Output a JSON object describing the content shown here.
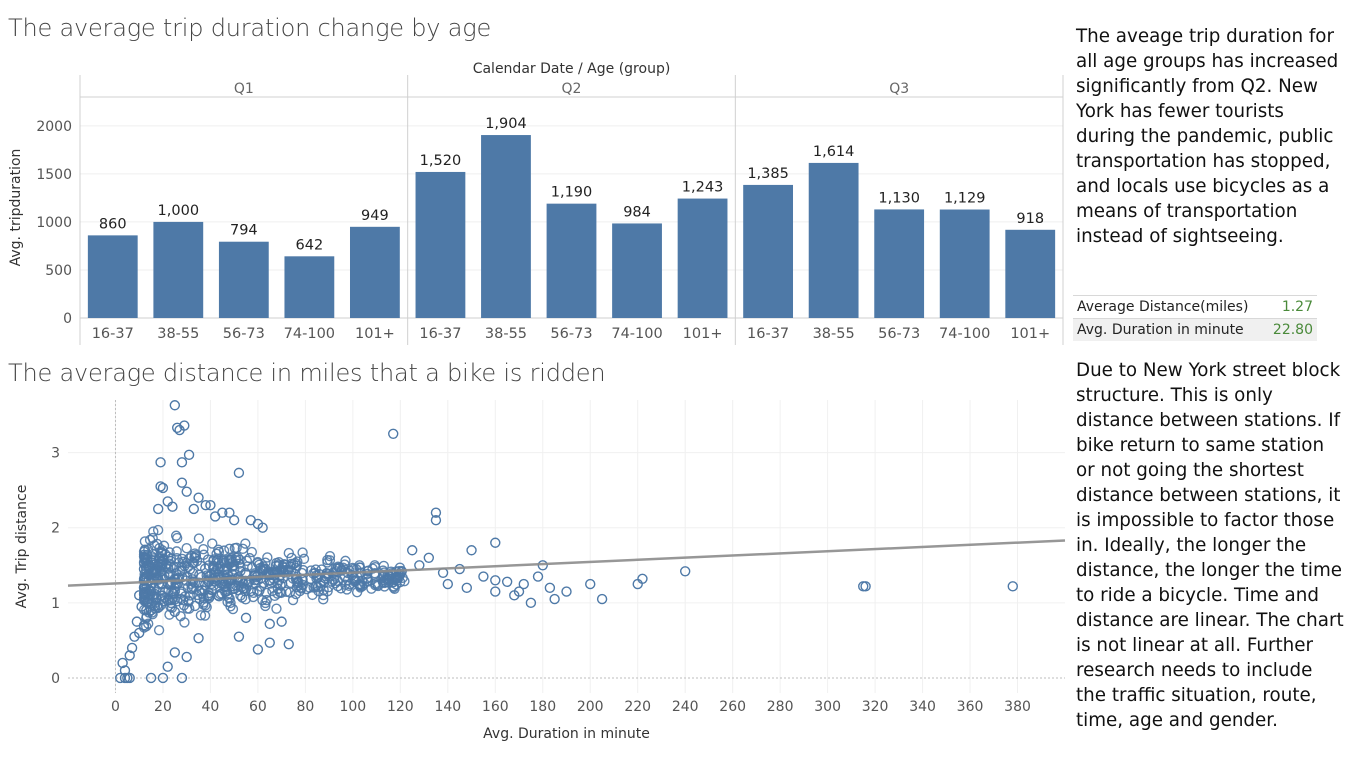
{
  "bar_title": "The average trip duration change by age",
  "scatter_title": "The average distance in miles that a bike is ridden",
  "note_1": "The aveage trip duration for all age groups has increased significantly from Q2.  New York has fewer tourists during the pandemic, public transportation has stopped, and locals use bicycles as a means of transportation instead of sightseeing.",
  "note_2": "Due to New York street block structure. This is only distance between stations. If bike return to  same station or not going the shortest distance between stations, it is impossible to factor those in. Ideally, the longer the distance, the longer the time to ride a bicycle. Time and distance are linear. The chart is not linear at all. Further research needs to include the traffic situation, route, time, age and gender.",
  "summary": {
    "rows": [
      {
        "label": "Average Distance(miles)",
        "value": "1.27"
      },
      {
        "label": "Avg. Duration in minute",
        "value": "22.80"
      }
    ]
  },
  "colors": {
    "mark": "#4e79a7",
    "trend": "#8c8c8c"
  },
  "chart_data": [
    {
      "type": "bar",
      "title": "The average trip duration change by age",
      "header_label": "Calendar Date  /  Age (group)",
      "ylabel": "Avg. tripduration",
      "ylim": [
        0,
        2300
      ],
      "yticks": [
        0,
        500,
        1000,
        1500,
        2000
      ],
      "categories": [
        "16-37",
        "38-55",
        "56-73",
        "74-100",
        "101+"
      ],
      "groups": [
        {
          "name": "Q1",
          "values": [
            860,
            1000,
            794,
            642,
            949
          ],
          "labels": [
            "860",
            "1,000",
            "794",
            "642",
            "949"
          ]
        },
        {
          "name": "Q2",
          "values": [
            1520,
            1904,
            1190,
            984,
            1243
          ],
          "labels": [
            "1,520",
            "1,904",
            "1,190",
            "984",
            "1,243"
          ]
        },
        {
          "name": "Q3",
          "values": [
            1385,
            1614,
            1130,
            1129,
            918
          ],
          "labels": [
            "1,385",
            "1,614",
            "1,130",
            "1,129",
            "918"
          ]
        }
      ],
      "grid": true
    },
    {
      "type": "scatter",
      "title": "The average distance in miles that a bike is ridden",
      "xlabel": "Avg. Duration in minute",
      "ylabel": "Avg. Trip distance",
      "xlim": [
        -20,
        400
      ],
      "ylim": [
        -0.2,
        3.7
      ],
      "xticks": [
        0,
        20,
        40,
        60,
        80,
        100,
        120,
        140,
        160,
        180,
        200,
        220,
        240,
        260,
        280,
        300,
        320,
        340,
        360,
        380
      ],
      "yticks": [
        0,
        1,
        2,
        3
      ],
      "trend_line": {
        "x": [
          -20,
          400
        ],
        "y": [
          1.23,
          1.83
        ]
      },
      "points": [
        [
          2,
          0
        ],
        [
          4,
          0
        ],
        [
          5,
          0
        ],
        [
          6,
          0
        ],
        [
          15,
          0
        ],
        [
          20,
          0
        ],
        [
          28,
          0
        ],
        [
          22,
          0.15
        ],
        [
          30,
          0.28
        ],
        [
          25,
          0.34
        ],
        [
          4,
          0.1
        ],
        [
          3,
          0.2
        ],
        [
          6,
          0.3
        ],
        [
          7,
          0.4
        ],
        [
          8,
          0.55
        ],
        [
          10,
          0.6
        ],
        [
          12,
          0.7
        ],
        [
          13,
          0.8
        ],
        [
          15,
          0.9
        ],
        [
          12,
          1.2
        ],
        [
          14,
          1.3
        ],
        [
          10,
          1.1
        ],
        [
          11,
          0.95
        ],
        [
          9,
          0.75
        ],
        [
          12,
          1.45
        ],
        [
          35,
          0.53
        ],
        [
          52,
          0.55
        ],
        [
          65,
          0.47
        ],
        [
          73,
          0.45
        ],
        [
          60,
          0.38
        ],
        [
          70,
          0.75
        ],
        [
          55,
          0.8
        ],
        [
          65,
          0.72
        ],
        [
          13,
          0.9
        ],
        [
          25,
          0.88
        ],
        [
          25,
          3.63
        ],
        [
          26,
          3.33
        ],
        [
          27,
          3.3
        ],
        [
          29,
          3.36
        ],
        [
          28,
          2.87
        ],
        [
          19,
          2.87
        ],
        [
          31,
          2.97
        ],
        [
          19,
          2.55
        ],
        [
          20,
          2.53
        ],
        [
          28,
          2.6
        ],
        [
          30,
          2.48
        ],
        [
          35,
          2.4
        ],
        [
          38,
          2.3
        ],
        [
          52,
          2.73
        ],
        [
          117,
          3.25
        ],
        [
          135,
          2.2
        ],
        [
          135,
          2.1
        ],
        [
          40,
          2.3
        ],
        [
          45,
          2.2
        ],
        [
          50,
          2.1
        ],
        [
          57,
          2.1
        ],
        [
          60,
          2.05
        ],
        [
          22,
          2.35
        ],
        [
          24,
          2.28
        ],
        [
          33,
          2.25
        ],
        [
          42,
          2.15
        ],
        [
          18,
          2.25
        ],
        [
          48,
          2.2
        ],
        [
          62,
          2.0
        ],
        [
          160,
          1.8
        ],
        [
          150,
          1.7
        ],
        [
          145,
          1.45
        ],
        [
          160,
          1.3
        ],
        [
          165,
          1.28
        ],
        [
          172,
          1.25
        ],
        [
          170,
          1.15
        ],
        [
          160,
          1.15
        ],
        [
          180,
          1.5
        ],
        [
          183,
          1.2
        ],
        [
          178,
          1.35
        ],
        [
          190,
          1.15
        ],
        [
          200,
          1.25
        ],
        [
          205,
          1.05
        ],
        [
          185,
          1.05
        ],
        [
          175,
          1.0
        ],
        [
          168,
          1.1
        ],
        [
          220,
          1.25
        ],
        [
          222,
          1.32
        ],
        [
          240,
          1.42
        ],
        [
          315,
          1.22
        ],
        [
          316,
          1.22
        ],
        [
          378,
          1.22
        ],
        [
          155,
          1.35
        ],
        [
          148,
          1.2
        ],
        [
          140,
          1.25
        ],
        [
          138,
          1.4
        ],
        [
          132,
          1.6
        ],
        [
          125,
          1.7
        ],
        [
          128,
          1.5
        ]
      ],
      "grid": true
    }
  ]
}
